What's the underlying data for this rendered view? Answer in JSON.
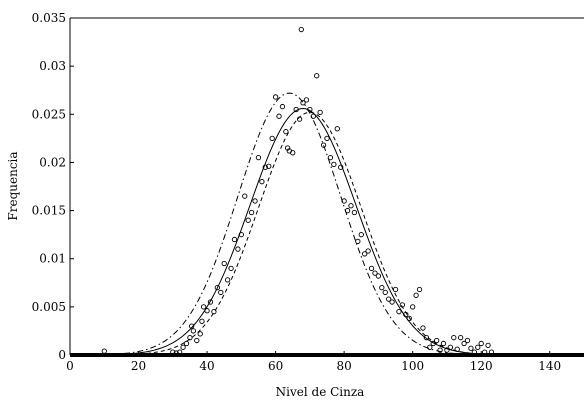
{
  "chart_data": {
    "type": "scatter",
    "title": "",
    "xlabel": "Nivel de Cinza",
    "ylabel": "Frequencia",
    "xlim": [
      0,
      150
    ],
    "ylim": [
      0,
      0.035
    ],
    "xticks": [
      0,
      20,
      40,
      60,
      80,
      100,
      120,
      140
    ],
    "xtick_labels": [
      "0",
      "20",
      "40",
      "60",
      "80",
      "100",
      "120",
      "140"
    ],
    "yticks": [
      0,
      0.005,
      0.01,
      0.015,
      0.02,
      0.025,
      0.03,
      0.035
    ],
    "ytick_labels": [
      "0",
      "0.005",
      "0.01",
      "0.015",
      "0.02",
      "0.025",
      "0.03",
      "0.035"
    ],
    "grid": false,
    "legend": null,
    "series": [
      {
        "style": "circle-markers",
        "points": [
          [
            10,
            0.0004
          ],
          [
            30,
            0.0003
          ],
          [
            31,
            0.0002
          ],
          [
            32,
            0.0003
          ],
          [
            33,
            0.0008
          ],
          [
            34,
            0.0012
          ],
          [
            35,
            0.0018
          ],
          [
            35.5,
            0.003
          ],
          [
            36,
            0.0025
          ],
          [
            37,
            0.0015
          ],
          [
            38,
            0.0022
          ],
          [
            38.5,
            0.0035
          ],
          [
            39,
            0.005
          ],
          [
            40,
            0.0046
          ],
          [
            41,
            0.0055
          ],
          [
            42,
            0.0045
          ],
          [
            43,
            0.007
          ],
          [
            44,
            0.0065
          ],
          [
            45,
            0.0095
          ],
          [
            46,
            0.0078
          ],
          [
            47,
            0.009
          ],
          [
            48,
            0.012
          ],
          [
            49,
            0.011
          ],
          [
            50,
            0.0125
          ],
          [
            51,
            0.0165
          ],
          [
            52,
            0.014
          ],
          [
            53,
            0.0148
          ],
          [
            54,
            0.016
          ],
          [
            55,
            0.0205
          ],
          [
            56,
            0.018
          ],
          [
            57,
            0.0195
          ],
          [
            58,
            0.0196
          ],
          [
            59,
            0.0225
          ],
          [
            60,
            0.0268
          ],
          [
            61,
            0.0248
          ],
          [
            62,
            0.0258
          ],
          [
            63,
            0.0232
          ],
          [
            63.5,
            0.0215
          ],
          [
            64,
            0.0212
          ],
          [
            65,
            0.021
          ],
          [
            66,
            0.0255
          ],
          [
            67,
            0.0245
          ],
          [
            67.5,
            0.0338
          ],
          [
            68,
            0.0262
          ],
          [
            69,
            0.0265
          ],
          [
            70,
            0.0255
          ],
          [
            71,
            0.0248
          ],
          [
            72,
            0.029
          ],
          [
            73,
            0.0252
          ],
          [
            74,
            0.0218
          ],
          [
            75,
            0.0225
          ],
          [
            76,
            0.0205
          ],
          [
            77,
            0.0198
          ],
          [
            78,
            0.0235
          ],
          [
            79,
            0.0195
          ],
          [
            80,
            0.016
          ],
          [
            81,
            0.015
          ],
          [
            82,
            0.0155
          ],
          [
            83,
            0.0148
          ],
          [
            84,
            0.0118
          ],
          [
            85,
            0.0125
          ],
          [
            86,
            0.0105
          ],
          [
            87,
            0.0108
          ],
          [
            88,
            0.009
          ],
          [
            89,
            0.0085
          ],
          [
            90,
            0.0082
          ],
          [
            91,
            0.007
          ],
          [
            92,
            0.0065
          ],
          [
            93,
            0.0058
          ],
          [
            94,
            0.0055
          ],
          [
            95,
            0.0068
          ],
          [
            96,
            0.0045
          ],
          [
            97,
            0.0052
          ],
          [
            98,
            0.0042
          ],
          [
            99,
            0.0038
          ],
          [
            100,
            0.005
          ],
          [
            101,
            0.0062
          ],
          [
            102,
            0.0068
          ],
          [
            103,
            0.0028
          ],
          [
            104,
            0.0018
          ],
          [
            105,
            0.0008
          ],
          [
            106,
            0.0012
          ],
          [
            107,
            0.0015
          ],
          [
            108,
            0.0005
          ],
          [
            109,
            0.0012
          ],
          [
            110,
            0.0005
          ],
          [
            111,
            0.0008
          ],
          [
            112,
            0.0018
          ],
          [
            113,
            0.0006
          ],
          [
            114,
            0.0018
          ],
          [
            115,
            0.0012
          ],
          [
            116,
            0.0015
          ],
          [
            117,
            0.0007
          ],
          [
            118,
            0.0003
          ],
          [
            119,
            0.0008
          ],
          [
            120,
            0.0012
          ],
          [
            121,
            0.0003
          ],
          [
            122,
            0.001
          ],
          [
            123,
            0.0003
          ]
        ]
      },
      {
        "style": "solid-line",
        "gaussian": {
          "mean": 68,
          "sigma": 15.5,
          "peak": 0.0256
        }
      },
      {
        "style": "dash-dot-line",
        "gaussian": {
          "mean": 64,
          "sigma": 15,
          "peak": 0.0272
        }
      },
      {
        "style": "dashed-line",
        "gaussian": {
          "mean": 70,
          "sigma": 15,
          "peak": 0.0252
        }
      }
    ]
  }
}
